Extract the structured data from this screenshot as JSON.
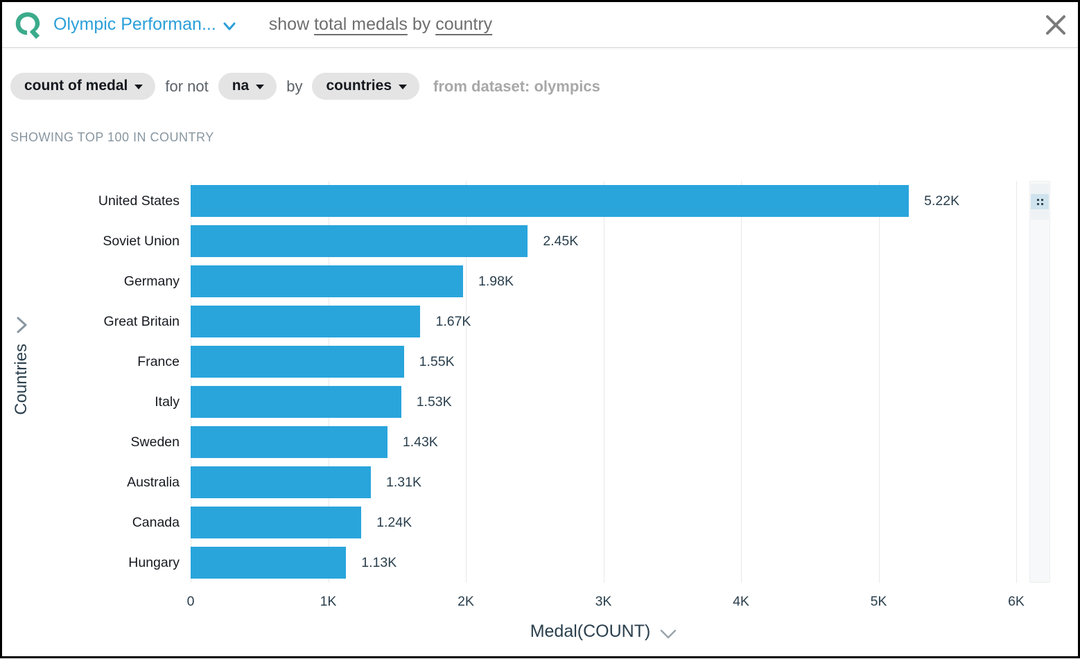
{
  "header": {
    "topic_name": "Olympic Performan...",
    "query_segments": [
      {
        "text": "show ",
        "underline": false
      },
      {
        "text": "total medals",
        "underline": true
      },
      {
        "text": " by ",
        "underline": false
      },
      {
        "text": "country",
        "underline": true
      }
    ]
  },
  "filter_bar": {
    "measure_pill": "count of medal",
    "for_not_text": "for not",
    "filter_value_pill": "na",
    "by_text": "by",
    "group_pill": "countries",
    "dataset_text": "from dataset: olympics"
  },
  "showing_note": "SHOWING TOP 100 IN COUNTRY",
  "chart_data": {
    "type": "bar",
    "orientation": "horizontal",
    "title": "",
    "xlabel": "Medal(COUNT)",
    "ylabel": "Countries",
    "categories": [
      "United States",
      "Soviet Union",
      "Germany",
      "Great Britain",
      "France",
      "Italy",
      "Sweden",
      "Australia",
      "Canada",
      "Hungary"
    ],
    "values": [
      5220,
      2450,
      1980,
      1670,
      1550,
      1530,
      1430,
      1310,
      1240,
      1130
    ],
    "value_labels": [
      "5.22K",
      "2.45K",
      "1.98K",
      "1.67K",
      "1.55K",
      "1.53K",
      "1.43K",
      "1.31K",
      "1.24K",
      "1.13K"
    ],
    "x_ticks": [
      "0",
      "1K",
      "2K",
      "3K",
      "4K",
      "5K",
      "6K"
    ],
    "xlim": [
      0,
      6000
    ],
    "grid": true,
    "bar_color": "#29a5dc"
  },
  "colors": {
    "bar": "#29a5dc",
    "brand_teal": "#3bab8c",
    "link_blue": "#2b9fd9",
    "axis_text": "#2a3f4d",
    "pill_bg": "#e4e4e4",
    "gridline": "#e8e8e8"
  }
}
